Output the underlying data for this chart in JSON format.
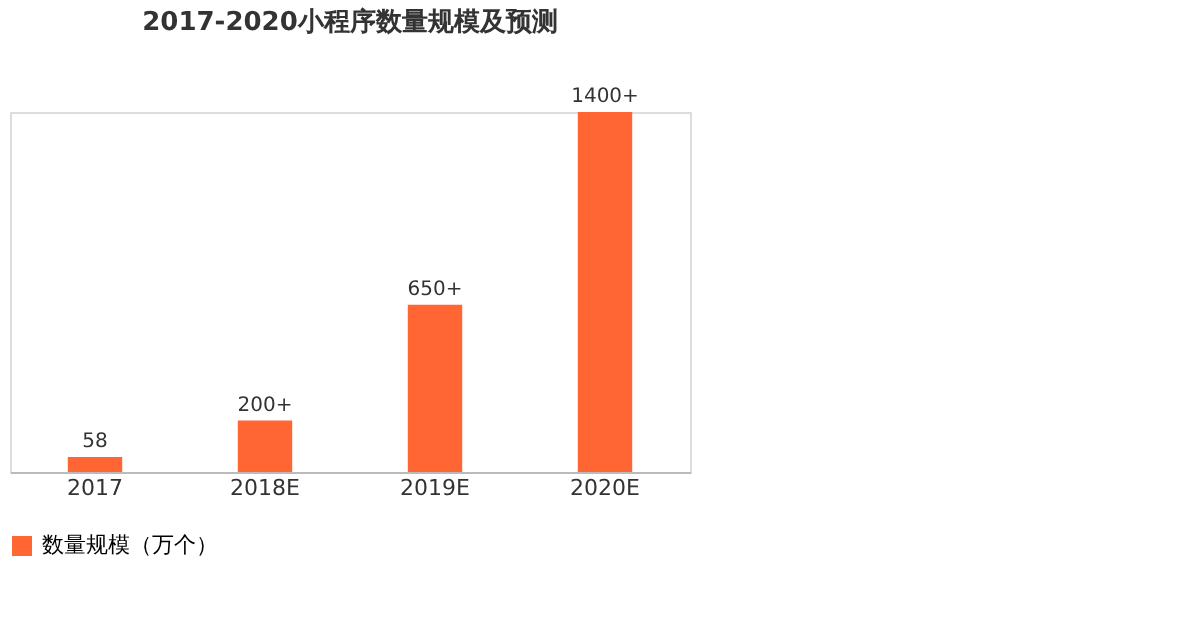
{
  "chart_data": {
    "type": "bar",
    "title": "2017-2020小程序数量规模及预测",
    "categories": [
      "2017",
      "2018E",
      "2019E",
      "2020E"
    ],
    "series": [
      {
        "name": "数量规模（万个）",
        "color": "#ff6633",
        "values": [
          58,
          200,
          650,
          1400
        ],
        "value_labels": [
          "58",
          "200+",
          "650+",
          "1400+"
        ]
      }
    ],
    "legend": "bottom",
    "grid": false,
    "tick_labels": "x"
  }
}
